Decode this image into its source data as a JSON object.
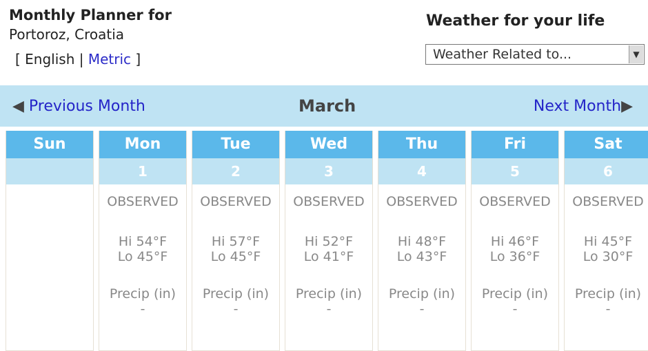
{
  "header": {
    "title": "Monthly Planner for",
    "location": "Portoroz, Croatia",
    "bracket_open": "[",
    "english": "English",
    "sep": "|",
    "metric": "Metric",
    "bracket_close": "]"
  },
  "weather_widget": {
    "title": "Weather for your life",
    "select_value": "Weather Related to..."
  },
  "nav": {
    "prev": "Previous Month",
    "month": "March",
    "next": "Next Month"
  },
  "days": [
    {
      "name": "Sun",
      "date": "",
      "status": "",
      "hi": "",
      "lo": "",
      "precip_label": "",
      "precip": ""
    },
    {
      "name": "Mon",
      "date": "1",
      "status": "OBSERVED",
      "hi": "Hi 54°F",
      "lo": "Lo 45°F",
      "precip_label": "Precip (in)",
      "precip": "-"
    },
    {
      "name": "Tue",
      "date": "2",
      "status": "OBSERVED",
      "hi": "Hi 57°F",
      "lo": "Lo 45°F",
      "precip_label": "Precip (in)",
      "precip": "-"
    },
    {
      "name": "Wed",
      "date": "3",
      "status": "OBSERVED",
      "hi": "Hi 52°F",
      "lo": "Lo 41°F",
      "precip_label": "Precip (in)",
      "precip": "-"
    },
    {
      "name": "Thu",
      "date": "4",
      "status": "OBSERVED",
      "hi": "Hi 48°F",
      "lo": "Lo 43°F",
      "precip_label": "Precip (in)",
      "precip": "-"
    },
    {
      "name": "Fri",
      "date": "5",
      "status": "OBSERVED",
      "hi": "Hi 46°F",
      "lo": "Lo 36°F",
      "precip_label": "Precip (in)",
      "precip": "-"
    },
    {
      "name": "Sat",
      "date": "6",
      "status": "OBSERVED",
      "hi": "Hi 45°F",
      "lo": "Lo 30°F",
      "precip_label": "Precip (in)",
      "precip": "-"
    }
  ]
}
